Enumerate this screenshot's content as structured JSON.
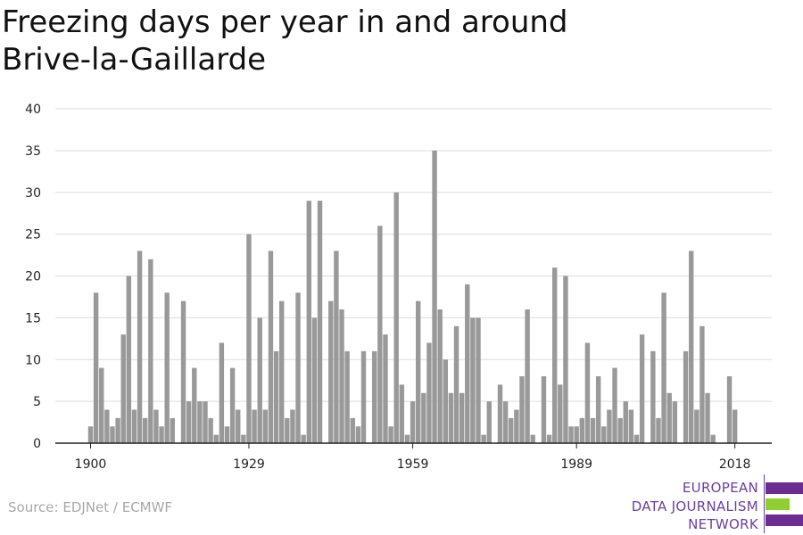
{
  "title": "Freezing days per year in and around Brive-la-Gaillarde",
  "source": "Source: EDJNet / ECMWF",
  "logo": {
    "line1": "EUROPEAN",
    "line2": "DATA JOURNALISM",
    "line3": "NETWORK",
    "colors": [
      "#6b2d91",
      "#8fcf2f",
      "#6b2d91"
    ]
  },
  "colors": {
    "bar": "#999999",
    "grid": "#dddddd",
    "axis": "#222222",
    "text": "#222222"
  },
  "chart_data": {
    "type": "bar",
    "xlabel": "",
    "ylabel": "",
    "ylim": [
      0,
      40
    ],
    "yticks": [
      0,
      5,
      10,
      15,
      20,
      25,
      30,
      35,
      40
    ],
    "xticks": [
      1900,
      1929,
      1959,
      1989,
      2018
    ],
    "grid": true,
    "x": [
      1900,
      1901,
      1902,
      1903,
      1904,
      1905,
      1906,
      1907,
      1908,
      1909,
      1910,
      1911,
      1912,
      1913,
      1914,
      1915,
      1916,
      1917,
      1918,
      1919,
      1920,
      1921,
      1922,
      1923,
      1924,
      1925,
      1926,
      1927,
      1928,
      1929,
      1930,
      1931,
      1932,
      1933,
      1934,
      1935,
      1936,
      1937,
      1938,
      1939,
      1940,
      1941,
      1942,
      1943,
      1944,
      1945,
      1946,
      1947,
      1948,
      1949,
      1950,
      1951,
      1952,
      1953,
      1954,
      1955,
      1956,
      1957,
      1958,
      1959,
      1960,
      1961,
      1962,
      1963,
      1964,
      1965,
      1966,
      1967,
      1968,
      1969,
      1970,
      1971,
      1972,
      1973,
      1974,
      1975,
      1976,
      1977,
      1978,
      1979,
      1980,
      1981,
      1982,
      1983,
      1984,
      1985,
      1986,
      1987,
      1988,
      1989,
      1990,
      1991,
      1992,
      1993,
      1994,
      1995,
      1996,
      1997,
      1998,
      1999,
      2000,
      2001,
      2002,
      2003,
      2004,
      2005,
      2006,
      2007,
      2008,
      2009,
      2010,
      2011,
      2012,
      2013,
      2014,
      2015,
      2016,
      2017,
      2018
    ],
    "values": [
      2,
      18,
      9,
      4,
      2,
      3,
      13,
      20,
      4,
      23,
      3,
      22,
      4,
      2,
      18,
      3,
      0,
      17,
      5,
      9,
      5,
      5,
      3,
      1,
      12,
      2,
      9,
      4,
      1,
      25,
      4,
      15,
      4,
      23,
      11,
      17,
      3,
      4,
      18,
      1,
      29,
      15,
      29,
      0,
      17,
      23,
      16,
      11,
      3,
      2,
      11,
      0,
      11,
      26,
      13,
      2,
      30,
      7,
      1,
      5,
      17,
      6,
      12,
      35,
      16,
      10,
      6,
      14,
      6,
      19,
      15,
      15,
      1,
      5,
      0,
      7,
      5,
      3,
      4,
      8,
      16,
      1,
      0,
      8,
      1,
      21,
      7,
      20,
      2,
      2,
      3,
      12,
      3,
      8,
      2,
      4,
      9,
      3,
      5,
      4,
      1,
      13,
      0,
      11,
      3,
      18,
      6,
      5,
      0,
      11,
      23,
      4,
      14,
      6,
      1,
      0,
      0,
      8,
      4
    ]
  }
}
